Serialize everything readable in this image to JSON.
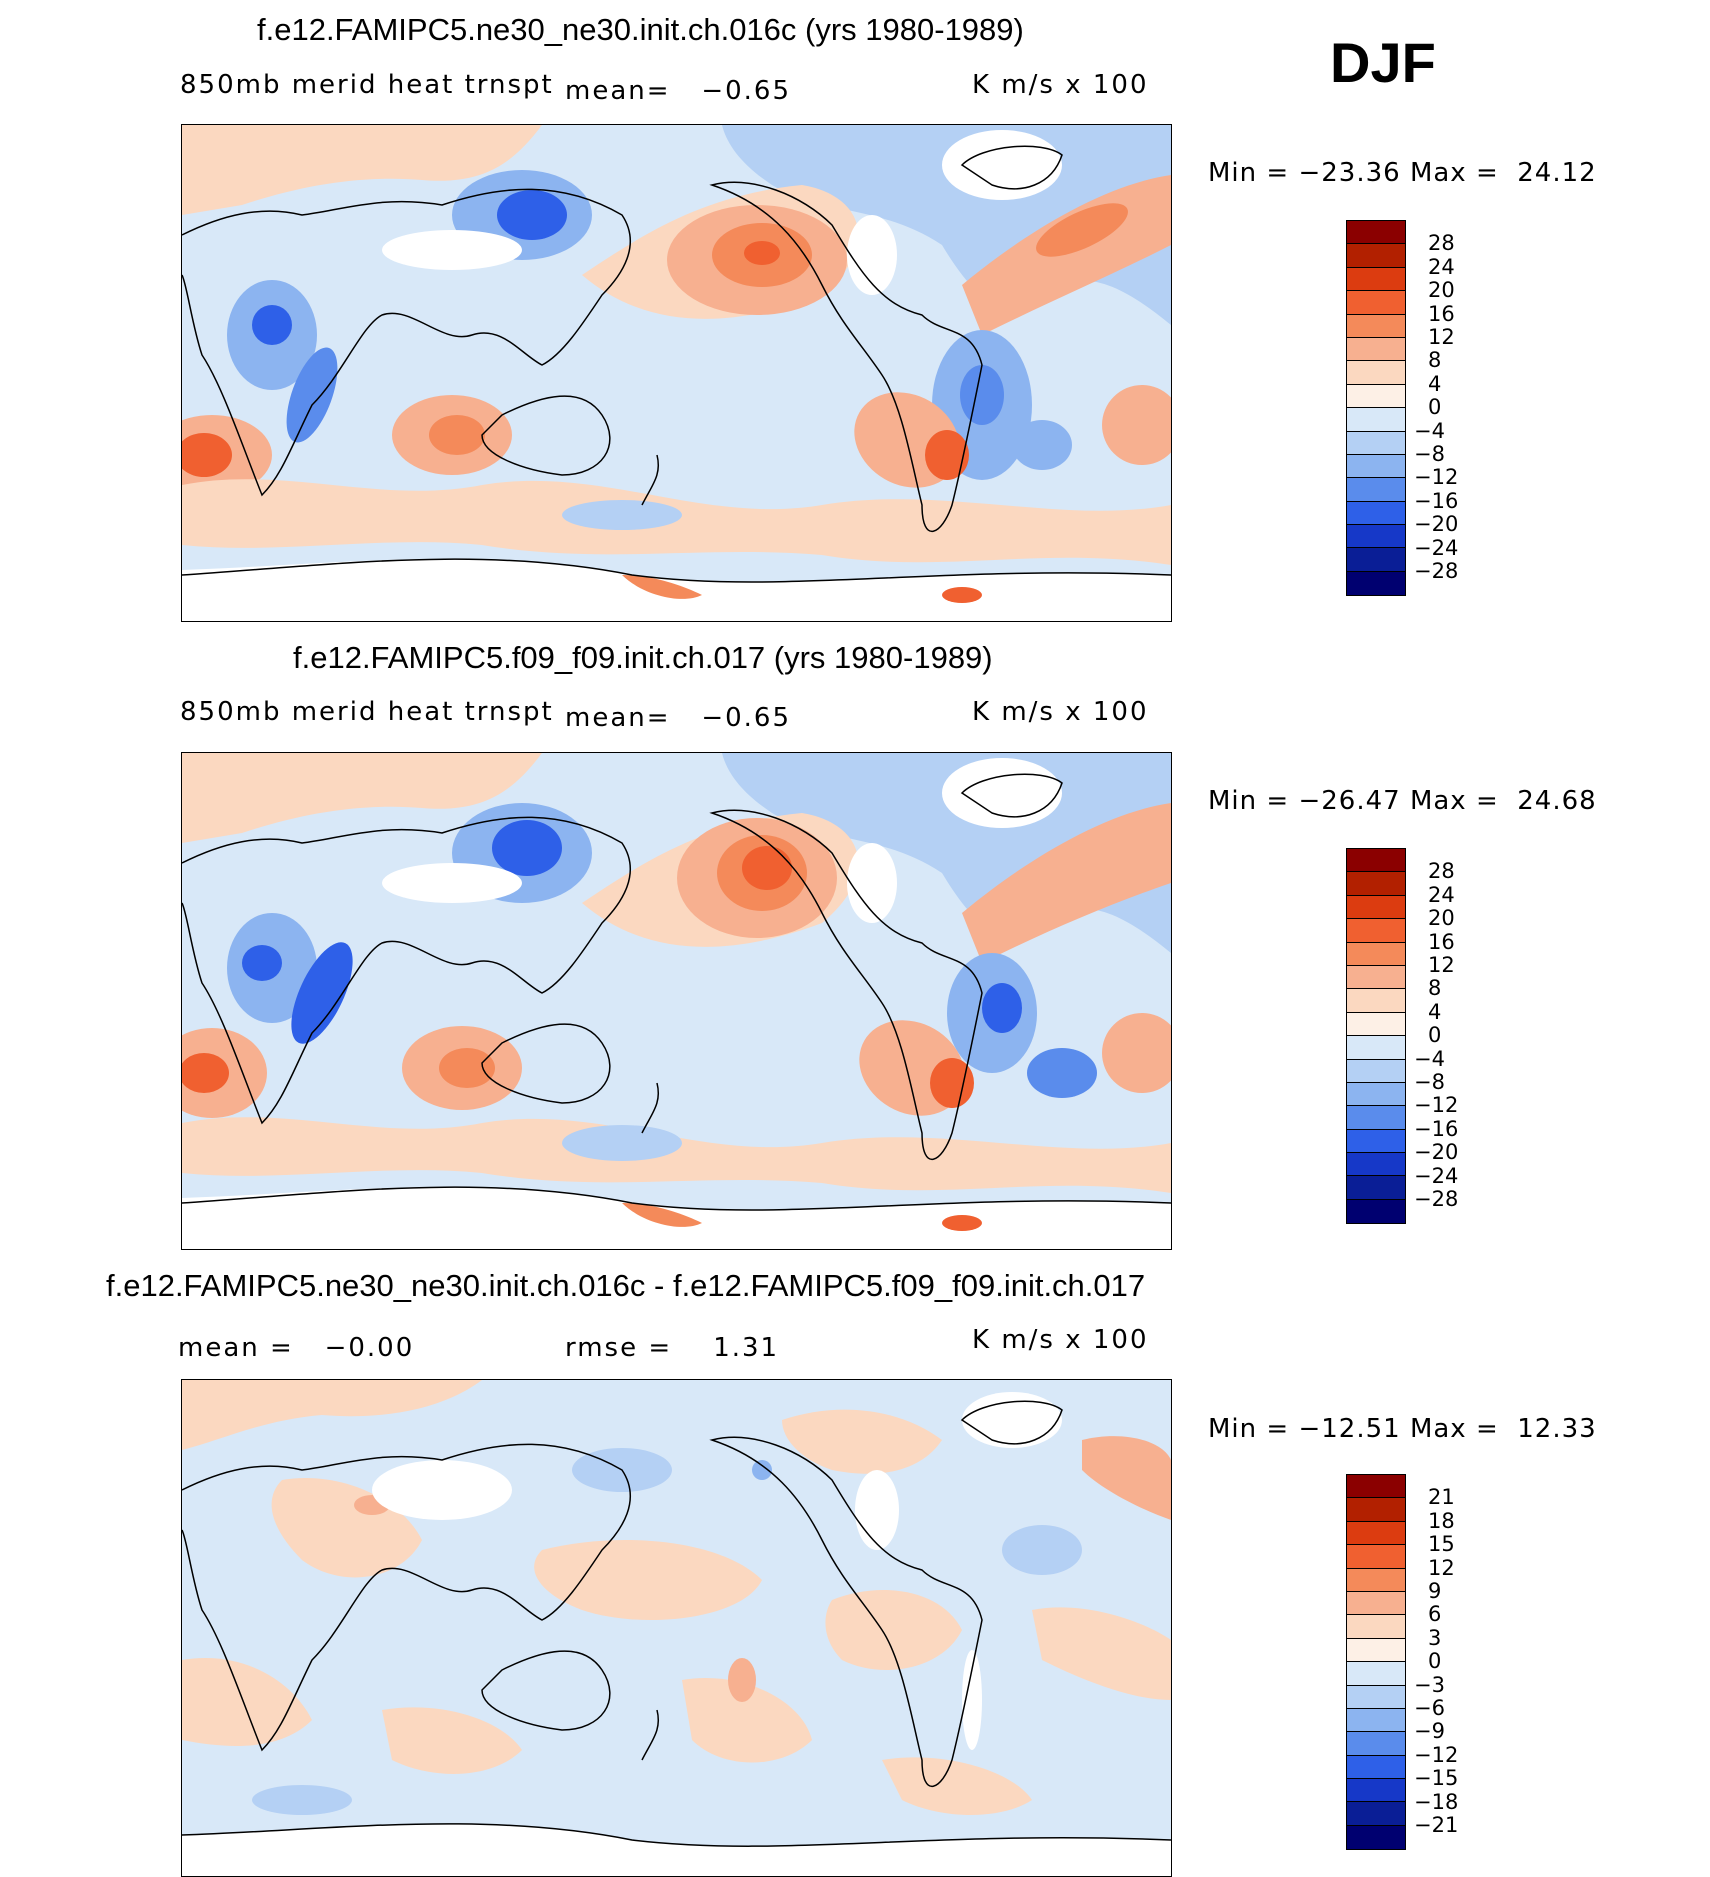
{
  "season": "DJF",
  "panels": [
    {
      "title": "f.e12.FAMIPC5.ne30_ne30.init.ch.016c (yrs 1980-1989)",
      "left_label": "850mb merid heat trnspt",
      "center_label": "mean=   −0.65",
      "right_label": "K m/s x 100",
      "min_label": "Min = −23.36",
      "max_label": "Max =  24.12",
      "levels": [
        "28",
        "24",
        "20",
        "16",
        "12",
        "8",
        "4",
        "0",
        "−4",
        "−8",
        "−12",
        "−16",
        "−20",
        "−24",
        "−28"
      ],
      "colors": [
        "#8b0000",
        "#b22000",
        "#dc3c10",
        "#f06030",
        "#f48a5a",
        "#f7b090",
        "#fbd8c0",
        "#fdf0e6",
        "#d8e8f8",
        "#b4d0f4",
        "#8cb4f0",
        "#5a8cec",
        "#2e60e8",
        "#1638c8",
        "#0a1e96",
        "#000070"
      ]
    },
    {
      "title": "f.e12.FAMIPC5.f09_f09.init.ch.017 (yrs 1980-1989)",
      "left_label": "850mb merid heat trnspt",
      "center_label": "mean=   −0.65",
      "right_label": "K m/s x 100",
      "min_label": "Min = −26.47",
      "max_label": "Max =  24.68",
      "levels": [
        "28",
        "24",
        "20",
        "16",
        "12",
        "8",
        "4",
        "0",
        "−4",
        "−8",
        "−12",
        "−16",
        "−20",
        "−24",
        "−28"
      ],
      "colors": [
        "#8b0000",
        "#b22000",
        "#dc3c10",
        "#f06030",
        "#f48a5a",
        "#f7b090",
        "#fbd8c0",
        "#fdf0e6",
        "#d8e8f8",
        "#b4d0f4",
        "#8cb4f0",
        "#5a8cec",
        "#2e60e8",
        "#1638c8",
        "#0a1e96",
        "#000070"
      ]
    },
    {
      "title": "f.e12.FAMIPC5.ne30_ne30.init.ch.016c - f.e12.FAMIPC5.f09_f09.init.ch.017",
      "left_label": "mean =   −0.00",
      "center_label": "rmse =    1.31",
      "right_label": "K m/s x 100",
      "min_label": "Min = −12.51",
      "max_label": "Max =  12.33",
      "levels": [
        "21",
        "18",
        "15",
        "12",
        "9",
        "6",
        "3",
        "0",
        "−3",
        "−6",
        "−9",
        "−12",
        "−15",
        "−18",
        "−21"
      ],
      "colors": [
        "#8b0000",
        "#b22000",
        "#dc3c10",
        "#f06030",
        "#f48a5a",
        "#f7b090",
        "#fbd8c0",
        "#fdf0e6",
        "#d8e8f8",
        "#b4d0f4",
        "#8cb4f0",
        "#5a8cec",
        "#2e60e8",
        "#1638c8",
        "#0a1e96",
        "#000070"
      ]
    }
  ]
}
